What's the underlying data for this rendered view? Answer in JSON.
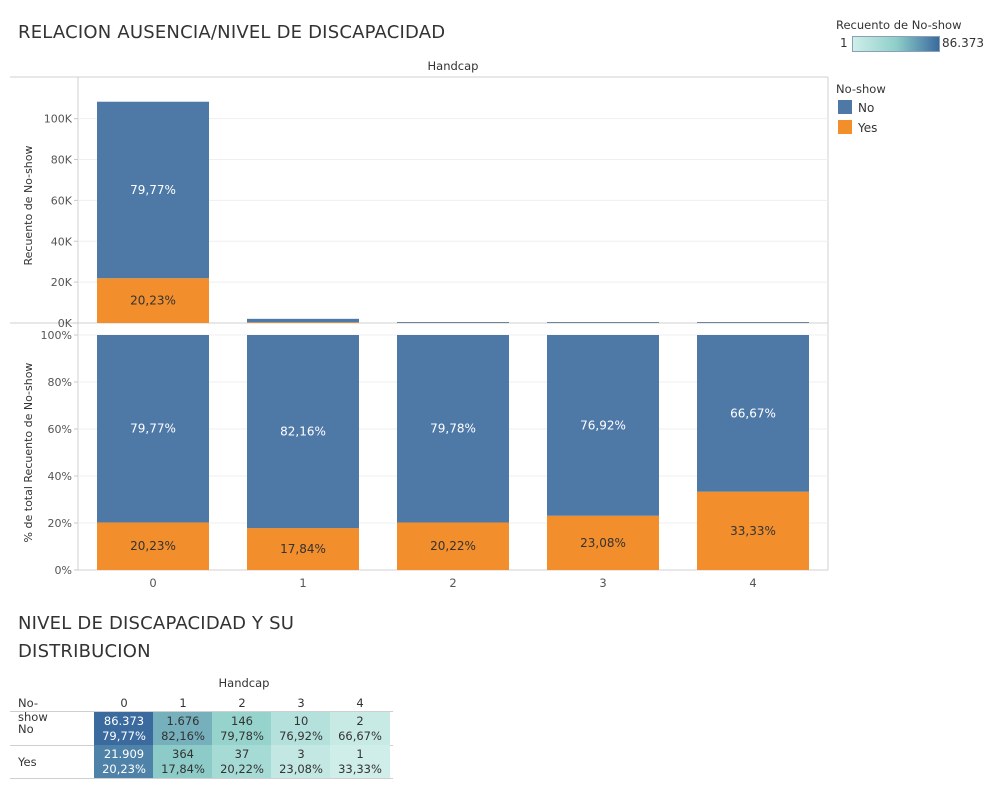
{
  "titles": {
    "main": "RELACION AUSENCIA/NIVEL DE DISCAPACIDAD",
    "secondary_line1": "NIVEL DE DISCAPACIDAD Y SU",
    "secondary_line2": "DISTRIBUCION"
  },
  "color_legend": {
    "title": "Recuento de No-show",
    "min_label": "1",
    "max_label": "86.373",
    "gradient": [
      "#cfeee9",
      "#8fcfc9",
      "#3a6a9e"
    ]
  },
  "series_legend": {
    "title": "No-show",
    "items": [
      {
        "label": "No",
        "color": "#4e79a7"
      },
      {
        "label": "Yes",
        "color": "#f28e2b"
      }
    ]
  },
  "chart_data": [
    {
      "type": "bar",
      "stacked": true,
      "title": "Handcap",
      "xlabel": "",
      "ylabel": "Recuento de No-show",
      "categories": [
        "0",
        "1",
        "2",
        "3",
        "4"
      ],
      "ylim": [
        0,
        115000
      ],
      "yticks": [
        "0K",
        "20K",
        "40K",
        "60K",
        "80K",
        "100K"
      ],
      "ytick_values": [
        0,
        20000,
        40000,
        60000,
        80000,
        100000
      ],
      "series": [
        {
          "name": "No",
          "color": "#4e79a7",
          "values": [
            86373,
            1676,
            146,
            10,
            2
          ],
          "labels": [
            "79,77%",
            "",
            "",
            "",
            ""
          ]
        },
        {
          "name": "Yes",
          "color": "#f28e2b",
          "values": [
            21909,
            364,
            37,
            3,
            1
          ],
          "labels": [
            "20,23%",
            "",
            "",
            "",
            ""
          ]
        }
      ]
    },
    {
      "type": "bar",
      "stacked": true,
      "xlabel": "",
      "ylabel": "% de total Recuento de No-show",
      "categories": [
        "0",
        "1",
        "2",
        "3",
        "4"
      ],
      "ylim": [
        0,
        1
      ],
      "yticks": [
        "0%",
        "20%",
        "40%",
        "60%",
        "80%",
        "100%"
      ],
      "ytick_values": [
        0,
        0.2,
        0.4,
        0.6,
        0.8,
        1.0
      ],
      "series": [
        {
          "name": "No",
          "color": "#4e79a7",
          "values": [
            0.7977,
            0.8216,
            0.7978,
            0.7692,
            0.6667
          ],
          "labels": [
            "79,77%",
            "82,16%",
            "79,78%",
            "76,92%",
            "66,67%"
          ]
        },
        {
          "name": "Yes",
          "color": "#f28e2b",
          "values": [
            0.2023,
            0.1784,
            0.2022,
            0.2308,
            0.3333
          ],
          "labels": [
            "20,23%",
            "17,84%",
            "20,22%",
            "23,08%",
            "33,33%"
          ]
        }
      ]
    },
    {
      "type": "table",
      "column_header": "Handcap",
      "row_header": "No-show",
      "columns": [
        "0",
        "1",
        "2",
        "3",
        "4"
      ],
      "rows": [
        {
          "label": "No",
          "counts": [
            "86.373",
            "1.676",
            "146",
            "10",
            "2"
          ],
          "percents": [
            "79,77%",
            "82,16%",
            "79,78%",
            "76,92%",
            "66,67%"
          ],
          "raw": [
            86373,
            1676,
            146,
            10,
            2
          ]
        },
        {
          "label": "Yes",
          "counts": [
            "21.909",
            "364",
            "37",
            "3",
            "1"
          ],
          "percents": [
            "20,23%",
            "17,84%",
            "20,22%",
            "23,08%",
            "33,33%"
          ],
          "raw": [
            21909,
            364,
            37,
            3,
            1
          ]
        }
      ]
    }
  ]
}
